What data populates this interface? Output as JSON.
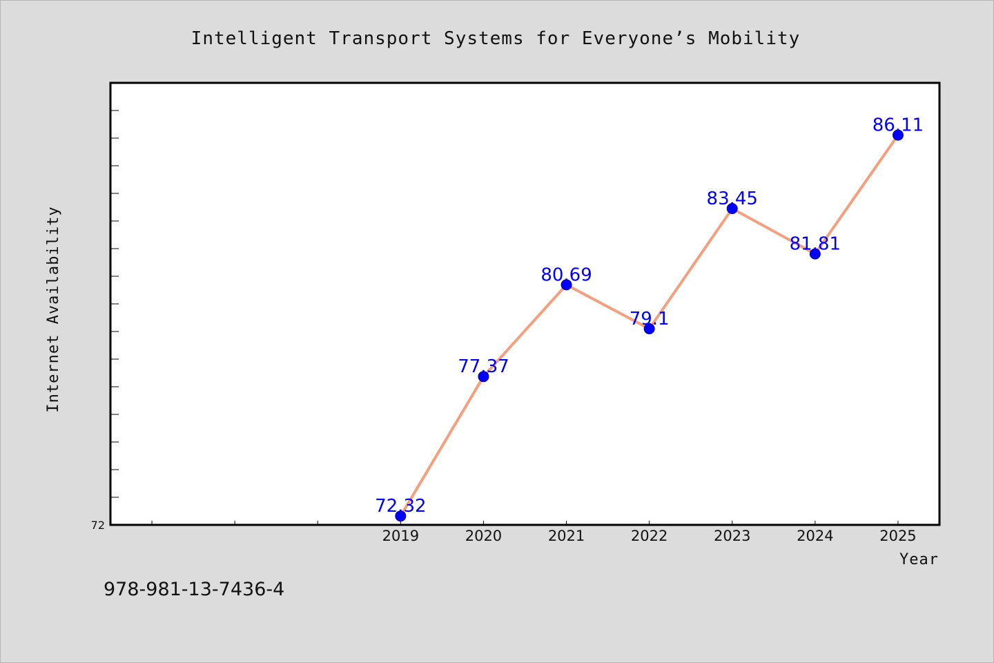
{
  "chart_data": {
    "type": "line",
    "title": "Intelligent Transport Systems for Everyone’s Mobility",
    "xlabel": "Year",
    "ylabel": "Internet Availability",
    "categories": [
      "2019",
      "2020",
      "2021",
      "2022",
      "2023",
      "2024",
      "2025"
    ],
    "series": [
      {
        "values": [
          72.32,
          77.37,
          80.69,
          79.1,
          83.45,
          81.81,
          86.11
        ],
        "labels": [
          "72.32",
          "77.37",
          "80.69",
          "79.1",
          "83.45",
          "81.81",
          "86.11"
        ]
      }
    ],
    "x_range": [
      2015.5,
      2025.5
    ],
    "ylim": [
      72,
      88
    ],
    "y_tick_labels": [
      "72"
    ],
    "grid": false,
    "legend": "none",
    "colors": {
      "line": "#f4a07e",
      "marker": "#0000ff",
      "data_label": "#0000ff",
      "background": "#dcdcdc",
      "plot_area": "#ffffff"
    }
  },
  "footer": {
    "isbn": "978-981-13-7436-4"
  }
}
